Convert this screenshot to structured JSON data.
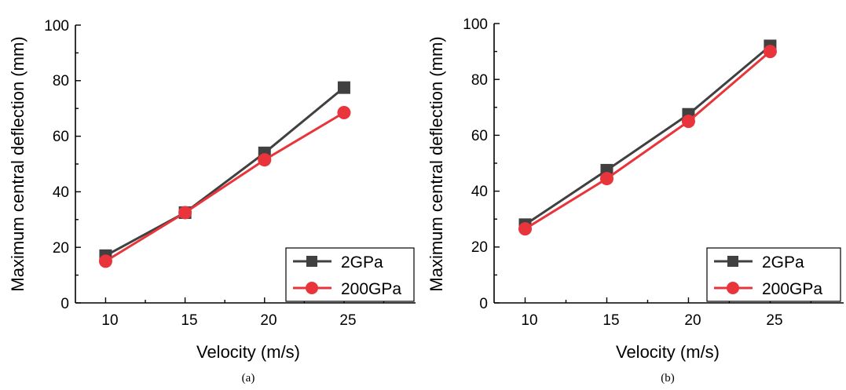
{
  "chart_data": [
    {
      "type": "line",
      "caption": "(a)",
      "xlabel": "Velocity (m/s)",
      "ylabel": "Maximum central deflection (mm)",
      "x": [
        10,
        15,
        20,
        25
      ],
      "xticks": [
        "10",
        "15",
        "20",
        "25"
      ],
      "yticks": [
        "0",
        "20",
        "40",
        "60",
        "80",
        "100"
      ],
      "xlim": [
        8.1,
        29.5
      ],
      "ylim": [
        0,
        100
      ],
      "grid": false,
      "legend_position": "bottom-right",
      "series": [
        {
          "name": "2GPa",
          "values": [
            17.0,
            32.5,
            54.0,
            77.5
          ],
          "color": "#404040",
          "marker": "square"
        },
        {
          "name": "200GPa",
          "values": [
            15.0,
            32.5,
            51.5,
            68.5
          ],
          "color": "#e8343a",
          "marker": "circle"
        }
      ]
    },
    {
      "type": "line",
      "caption": "(b)",
      "xlabel": "Velocity (m/s)",
      "ylabel": "Maximum central deflection (mm)",
      "x": [
        10,
        15,
        20,
        25
      ],
      "xticks": [
        "10",
        "15",
        "20",
        "25"
      ],
      "yticks": [
        "0",
        "20",
        "40",
        "60",
        "80",
        "100"
      ],
      "xlim": [
        8.1,
        29.5
      ],
      "ylim": [
        0,
        100
      ],
      "grid": false,
      "legend_position": "bottom-right",
      "series": [
        {
          "name": "2GPa",
          "values": [
            28.0,
            47.5,
            67.5,
            92.0
          ],
          "color": "#404040",
          "marker": "square"
        },
        {
          "name": "200GPa",
          "values": [
            26.5,
            44.5,
            65.0,
            90.0
          ],
          "color": "#e8343a",
          "marker": "circle"
        }
      ]
    }
  ]
}
